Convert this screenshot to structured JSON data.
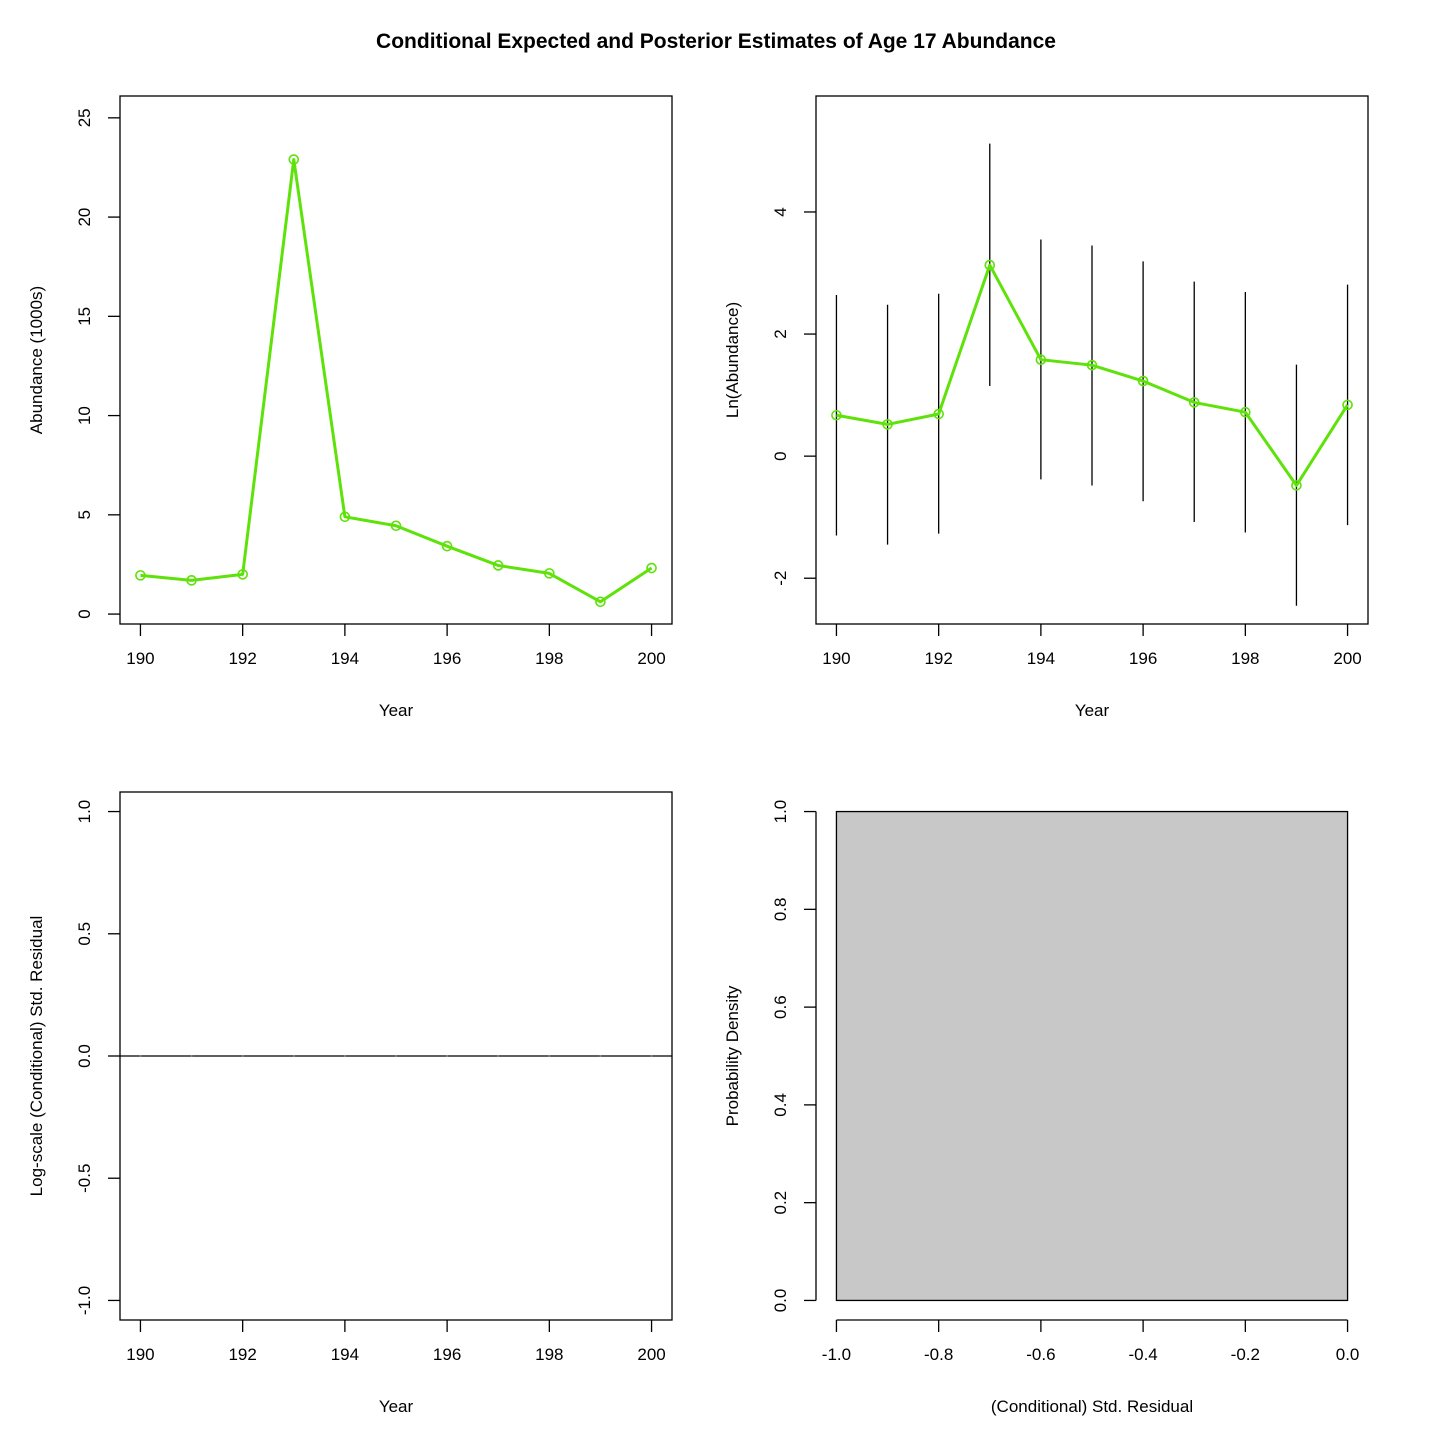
{
  "title": "Conditional Expected and Posterior Estimates of Age 17 Abundance",
  "colors": {
    "line": "#5ee20a",
    "errorbar": "#000000",
    "hist_fill": "#c8c8c8",
    "axis": "#000000"
  },
  "chart_data": [
    {
      "type": "line",
      "xlabel": "Year",
      "ylabel": "Abundance (1000s)",
      "x_ticks": [
        "190",
        "192",
        "194",
        "196",
        "198",
        "200"
      ],
      "y_ticks": [
        "0",
        "5",
        "10",
        "15",
        "20",
        "25"
      ],
      "xlim": [
        189.6,
        200.4
      ],
      "ylim": [
        -0.5,
        26.1
      ],
      "x": [
        190,
        191,
        192,
        193,
        194,
        195,
        196,
        197,
        198,
        199,
        200
      ],
      "y": [
        1.95,
        1.7,
        2.0,
        22.9,
        4.9,
        4.45,
        3.42,
        2.45,
        2.05,
        0.62,
        2.32
      ],
      "markers": "open-circle"
    },
    {
      "type": "line",
      "xlabel": "Year",
      "ylabel": "Ln(Abundance)",
      "x_ticks": [
        "190",
        "192",
        "194",
        "196",
        "198",
        "200"
      ],
      "y_ticks": [
        "-2",
        "0",
        "2",
        "4"
      ],
      "xlim": [
        189.6,
        200.4
      ],
      "ylim": [
        -2.75,
        5.9
      ],
      "x": [
        190,
        191,
        192,
        193,
        194,
        195,
        196,
        197,
        198,
        199,
        200
      ],
      "y": [
        0.67,
        0.52,
        0.69,
        3.13,
        1.58,
        1.49,
        1.23,
        0.88,
        0.72,
        -0.48,
        0.84
      ],
      "lower": [
        -1.3,
        -1.45,
        -1.27,
        1.15,
        -0.38,
        -0.48,
        -0.74,
        -1.08,
        -1.25,
        -2.45,
        -1.13
      ],
      "upper": [
        2.64,
        2.48,
        2.66,
        5.12,
        3.55,
        3.45,
        3.19,
        2.86,
        2.69,
        1.5,
        2.81
      ],
      "markers": "open-circle",
      "error_bars": true
    },
    {
      "type": "scatter",
      "xlabel": "Year",
      "ylabel": "Log-scale (Conditional) Std. Residual",
      "x_ticks": [
        "190",
        "192",
        "194",
        "196",
        "198",
        "200"
      ],
      "y_ticks": [
        "-1.0",
        "-0.5",
        "0.0",
        "0.5",
        "1.0"
      ],
      "xlim": [
        189.6,
        200.4
      ],
      "ylim": [
        -1.08,
        1.08
      ],
      "x": [
        190,
        191,
        192,
        193,
        194,
        195,
        196,
        197,
        198,
        199,
        200
      ],
      "y": [
        0,
        0,
        0,
        0,
        0,
        0,
        0,
        0,
        0,
        0,
        0
      ],
      "hline": 0
    },
    {
      "type": "bar",
      "xlabel": "(Conditional) Std. Residual",
      "ylabel": "Probability Density",
      "x_ticks": [
        "-1.0",
        "-0.8",
        "-0.6",
        "-0.4",
        "-0.2",
        "0.0"
      ],
      "y_ticks": [
        "0.0",
        "0.2",
        "0.4",
        "0.6",
        "0.8",
        "1.0"
      ],
      "xlim": [
        -1.04,
        0.04
      ],
      "ylim": [
        -0.04,
        1.04
      ],
      "bins": [
        {
          "from": -1.0,
          "to": 0.0,
          "density": 1.0
        }
      ]
    }
  ]
}
